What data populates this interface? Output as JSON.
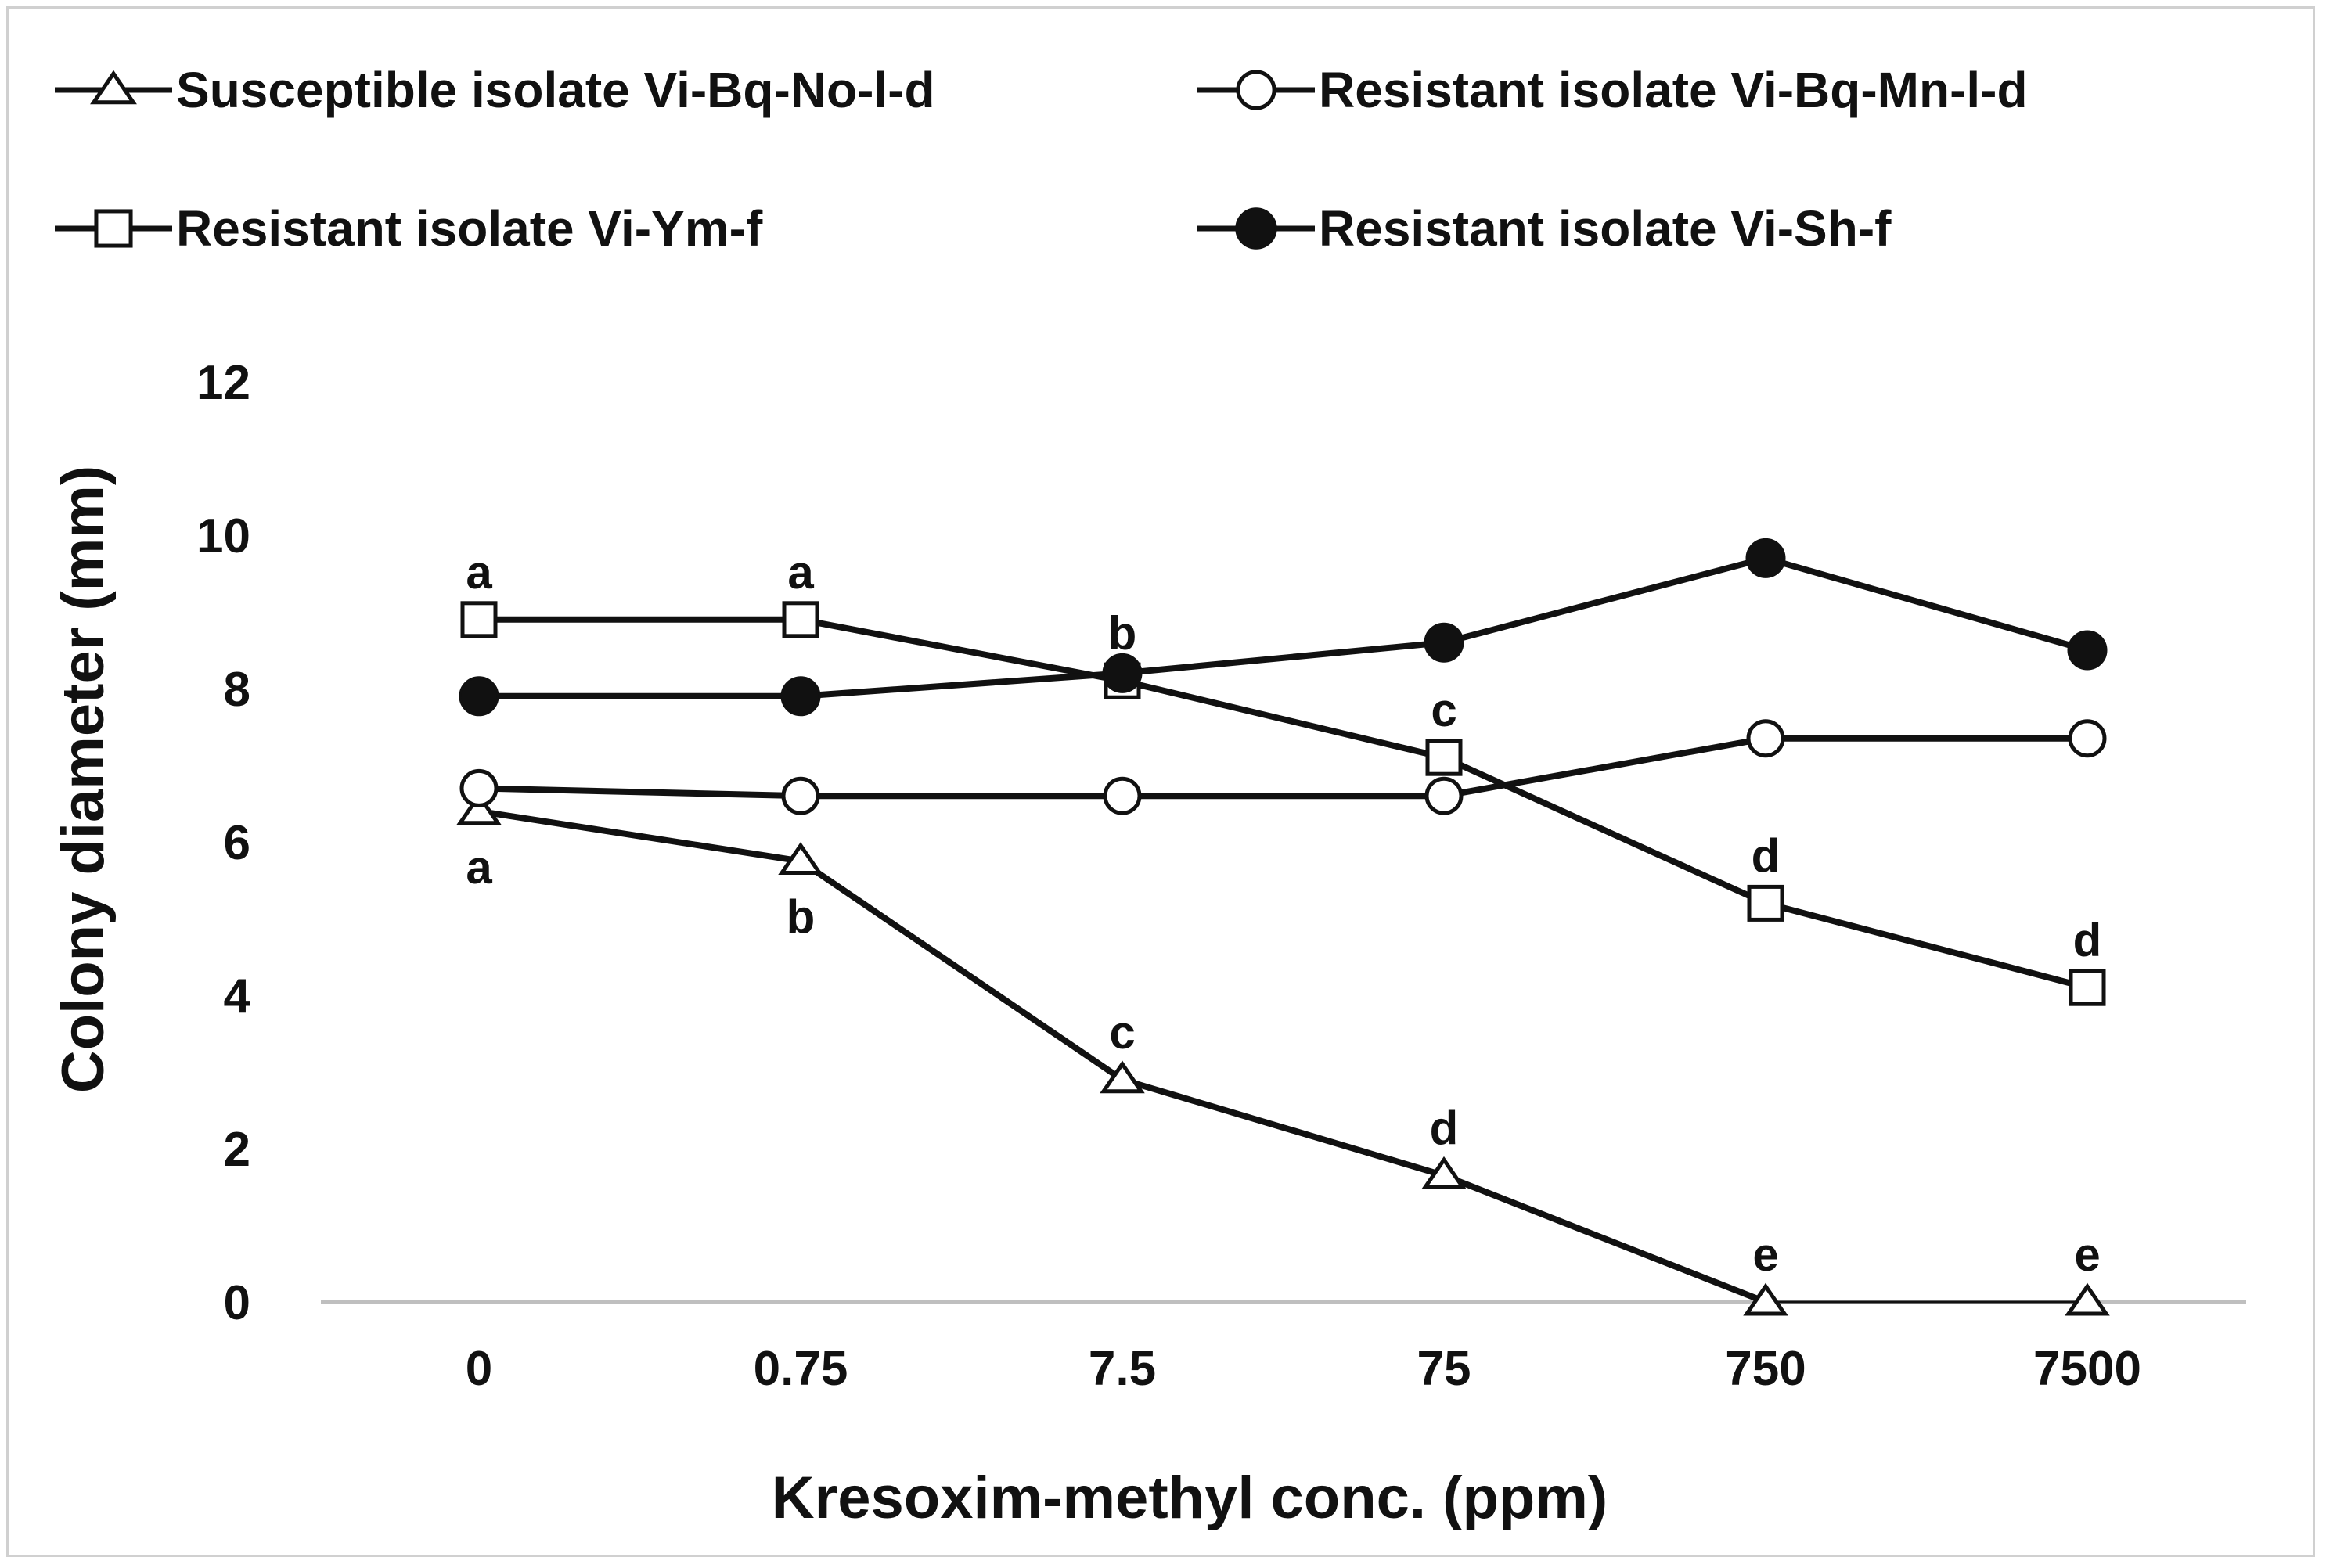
{
  "chart_data": {
    "type": "line",
    "title": "",
    "xlabel": "Kresoxim-methyl conc. (ppm)",
    "ylabel": "Colony diameter (mm)",
    "categories": [
      "0",
      "0.75",
      "7.5",
      "75",
      "750",
      "7500"
    ],
    "ylim": [
      0,
      12
    ],
    "yticks": [
      "0",
      "2",
      "4",
      "6",
      "8",
      "10",
      "12"
    ],
    "grid": false,
    "legend_position": "top",
    "series": [
      {
        "name": "Susceptible isolate Vi-Bq-No-l-d",
        "marker": "open-triangle",
        "values": [
          6.4,
          5.75,
          2.9,
          1.65,
          0,
          0
        ],
        "labels": [
          "a",
          "b",
          "c",
          "d",
          "e",
          "e"
        ],
        "label_side": [
          "below",
          "below",
          "above",
          "above",
          "above",
          "above"
        ]
      },
      {
        "name": "Resistant isolate Vi-Bq-Mn-l-d",
        "marker": "open-circle",
        "values": [
          6.7,
          6.6,
          6.6,
          6.6,
          7.35,
          7.35
        ],
        "labels": [
          "",
          "",
          "",
          "",
          "",
          ""
        ],
        "label_side": [
          "above",
          "above",
          "above",
          "above",
          "above",
          "above"
        ]
      },
      {
        "name": "Resistant isolate Vi-Ym-f",
        "marker": "open-square",
        "values": [
          8.9,
          8.9,
          8.1,
          7.1,
          5.2,
          4.1
        ],
        "labels": [
          "a",
          "a",
          "b",
          "c",
          "d",
          "d"
        ],
        "label_side": [
          "above",
          "above",
          "above",
          "above",
          "above",
          "above"
        ]
      },
      {
        "name": "Resistant isolate Vi-Sh-f",
        "marker": "filled-circle",
        "values": [
          7.9,
          7.9,
          8.2,
          8.6,
          9.7,
          8.5
        ],
        "labels": [
          "",
          "",
          "",
          "",
          "",
          ""
        ],
        "label_side": [
          "above",
          "above",
          "above",
          "above",
          "above",
          "above"
        ]
      }
    ]
  },
  "colors": {
    "line": "#111111",
    "marker_fill_open": "#ffffff",
    "marker_fill_solid": "#111111",
    "axis": "#bfbfbf",
    "frame": "#d0d0d0"
  }
}
